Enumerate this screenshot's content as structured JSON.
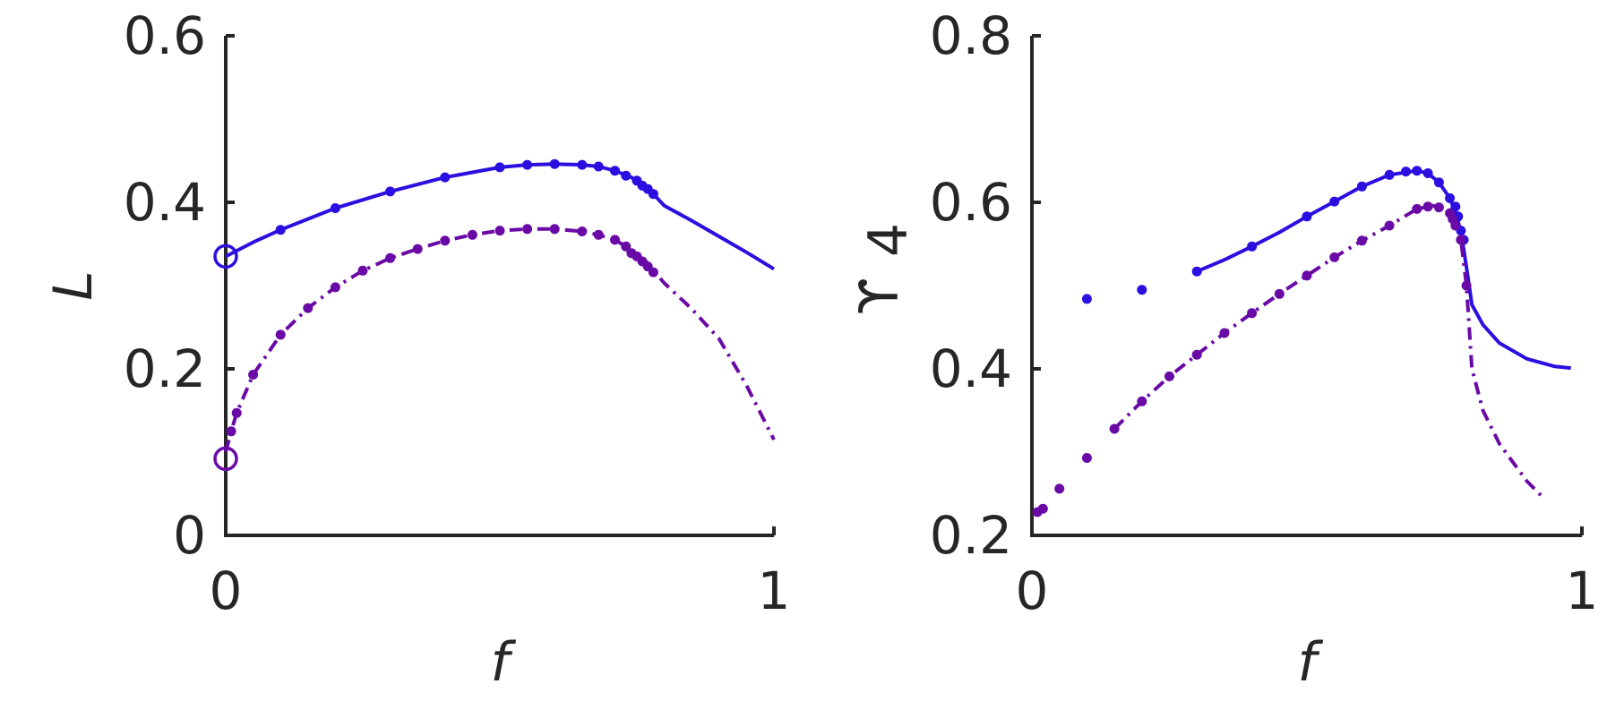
{
  "colors": {
    "blue": "#2a0fe0",
    "purple": "#6a0aa6",
    "axis": "#262626"
  },
  "chart_data": [
    {
      "type": "line",
      "xlabel": "f",
      "ylabel": "L",
      "xlim": [
        0,
        1
      ],
      "ylim": [
        0,
        0.6
      ],
      "x_ticks": [
        "0",
        "1"
      ],
      "y_ticks": [
        "0",
        "0.2",
        "0.4",
        "0.6"
      ],
      "series": [
        {
          "style": "solid",
          "color": "#2a0fe0",
          "line": [
            [
              0,
              0.335
            ],
            [
              0.05,
              0.352
            ],
            [
              0.1,
              0.367
            ],
            [
              0.2,
              0.393
            ],
            [
              0.3,
              0.413
            ],
            [
              0.4,
              0.43
            ],
            [
              0.5,
              0.442
            ],
            [
              0.55,
              0.445
            ],
            [
              0.6,
              0.446
            ],
            [
              0.65,
              0.445
            ],
            [
              0.68,
              0.443
            ],
            [
              0.71,
              0.438
            ],
            [
              0.74,
              0.43
            ],
            [
              0.76,
              0.42
            ],
            [
              0.78,
              0.41
            ],
            [
              0.8,
              0.396
            ],
            [
              0.85,
              0.378
            ],
            [
              0.9,
              0.359
            ],
            [
              0.95,
              0.34
            ],
            [
              1.0,
              0.32
            ]
          ],
          "points": [
            [
              0.1,
              0.367
            ],
            [
              0.2,
              0.393
            ],
            [
              0.3,
              0.413
            ],
            [
              0.4,
              0.43
            ],
            [
              0.5,
              0.442
            ],
            [
              0.55,
              0.445
            ],
            [
              0.6,
              0.446
            ],
            [
              0.65,
              0.445
            ],
            [
              0.68,
              0.443
            ],
            [
              0.71,
              0.438
            ],
            [
              0.73,
              0.432
            ],
            [
              0.75,
              0.426
            ],
            [
              0.76,
              0.42
            ],
            [
              0.77,
              0.416
            ],
            [
              0.78,
              0.41
            ]
          ],
          "open_marker": [
            0,
            0.335
          ]
        },
        {
          "style": "dashdot",
          "color": "#6a0aa6",
          "line": [
            [
              0,
              0.1
            ],
            [
              0.01,
              0.125
            ],
            [
              0.02,
              0.147
            ],
            [
              0.05,
              0.193
            ],
            [
              0.1,
              0.241
            ],
            [
              0.15,
              0.273
            ],
            [
              0.2,
              0.298
            ],
            [
              0.25,
              0.318
            ],
            [
              0.3,
              0.333
            ],
            [
              0.35,
              0.344
            ],
            [
              0.4,
              0.354
            ],
            [
              0.45,
              0.361
            ],
            [
              0.5,
              0.366
            ],
            [
              0.55,
              0.368
            ],
            [
              0.6,
              0.368
            ],
            [
              0.65,
              0.365
            ],
            [
              0.68,
              0.361
            ],
            [
              0.71,
              0.355
            ],
            [
              0.73,
              0.347
            ],
            [
              0.75,
              0.337
            ],
            [
              0.77,
              0.327
            ],
            [
              0.78,
              0.318
            ],
            [
              0.8,
              0.303
            ],
            [
              0.85,
              0.272
            ],
            [
              0.9,
              0.236
            ],
            [
              0.95,
              0.18
            ],
            [
              1.0,
              0.115
            ]
          ],
          "points": [
            [
              0.01,
              0.125
            ],
            [
              0.02,
              0.147
            ],
            [
              0.05,
              0.193
            ],
            [
              0.1,
              0.241
            ],
            [
              0.15,
              0.273
            ],
            [
              0.2,
              0.298
            ],
            [
              0.25,
              0.318
            ],
            [
              0.3,
              0.333
            ],
            [
              0.35,
              0.344
            ],
            [
              0.4,
              0.354
            ],
            [
              0.45,
              0.361
            ],
            [
              0.5,
              0.366
            ],
            [
              0.55,
              0.368
            ],
            [
              0.6,
              0.368
            ],
            [
              0.65,
              0.365
            ],
            [
              0.68,
              0.361
            ],
            [
              0.71,
              0.355
            ],
            [
              0.73,
              0.347
            ],
            [
              0.74,
              0.339
            ],
            [
              0.75,
              0.335
            ],
            [
              0.76,
              0.329
            ],
            [
              0.77,
              0.323
            ],
            [
              0.78,
              0.316
            ]
          ],
          "open_marker": [
            0,
            0.092
          ]
        }
      ]
    },
    {
      "type": "line",
      "xlabel": "f",
      "ylabel": "ϒ",
      "ylabel_sub": "4",
      "xlim": [
        0,
        1
      ],
      "ylim": [
        0.2,
        0.8
      ],
      "x_ticks": [
        "0",
        "1"
      ],
      "y_ticks": [
        "0.2",
        "0.4",
        "0.6",
        "0.8"
      ],
      "series": [
        {
          "style": "solid",
          "color": "#2a0fe0",
          "line": [
            [
              0.3,
              0.517
            ],
            [
              0.35,
              0.531
            ],
            [
              0.4,
              0.547
            ],
            [
              0.45,
              0.564
            ],
            [
              0.5,
              0.583
            ],
            [
              0.55,
              0.601
            ],
            [
              0.6,
              0.619
            ],
            [
              0.65,
              0.633
            ],
            [
              0.7,
              0.638
            ],
            [
              0.72,
              0.635
            ],
            [
              0.74,
              0.624
            ],
            [
              0.76,
              0.605
            ],
            [
              0.77,
              0.588
            ],
            [
              0.78,
              0.565
            ],
            [
              0.79,
              0.522
            ],
            [
              0.8,
              0.477
            ],
            [
              0.82,
              0.453
            ],
            [
              0.85,
              0.431
            ],
            [
              0.9,
              0.412
            ],
            [
              0.95,
              0.403
            ],
            [
              0.98,
              0.401
            ]
          ],
          "points": [
            [
              0.1,
              0.484
            ],
            [
              0.2,
              0.495
            ],
            [
              0.3,
              0.517
            ],
            [
              0.4,
              0.547
            ],
            [
              0.5,
              0.583
            ],
            [
              0.55,
              0.601
            ],
            [
              0.6,
              0.619
            ],
            [
              0.65,
              0.633
            ],
            [
              0.68,
              0.637
            ],
            [
              0.7,
              0.638
            ],
            [
              0.72,
              0.635
            ],
            [
              0.74,
              0.624
            ],
            [
              0.76,
              0.605
            ],
            [
              0.77,
              0.595
            ],
            [
              0.775,
              0.583
            ],
            [
              0.78,
              0.566
            ],
            [
              0.785,
              0.555
            ]
          ]
        },
        {
          "style": "dashdot",
          "color": "#6a0aa6",
          "line": [
            [
              0.15,
              0.328
            ],
            [
              0.2,
              0.361
            ],
            [
              0.25,
              0.391
            ],
            [
              0.3,
              0.417
            ],
            [
              0.35,
              0.443
            ],
            [
              0.4,
              0.467
            ],
            [
              0.45,
              0.49
            ],
            [
              0.5,
              0.512
            ],
            [
              0.55,
              0.534
            ],
            [
              0.6,
              0.554
            ],
            [
              0.65,
              0.572
            ],
            [
              0.7,
              0.592
            ],
            [
              0.73,
              0.596
            ],
            [
              0.76,
              0.588
            ],
            [
              0.77,
              0.576
            ],
            [
              0.78,
              0.555
            ],
            [
              0.79,
              0.5
            ],
            [
              0.8,
              0.4
            ],
            [
              0.82,
              0.35
            ],
            [
              0.85,
              0.31
            ],
            [
              0.9,
              0.265
            ],
            [
              0.93,
              0.245
            ]
          ],
          "points": [
            [
              0.01,
              0.228
            ],
            [
              0.02,
              0.232
            ],
            [
              0.05,
              0.256
            ],
            [
              0.1,
              0.293
            ],
            [
              0.15,
              0.328
            ],
            [
              0.2,
              0.361
            ],
            [
              0.25,
              0.391
            ],
            [
              0.3,
              0.417
            ],
            [
              0.35,
              0.443
            ],
            [
              0.4,
              0.467
            ],
            [
              0.45,
              0.49
            ],
            [
              0.5,
              0.512
            ],
            [
              0.55,
              0.534
            ],
            [
              0.6,
              0.554
            ],
            [
              0.65,
              0.572
            ],
            [
              0.7,
              0.592
            ],
            [
              0.72,
              0.595
            ],
            [
              0.74,
              0.594
            ],
            [
              0.76,
              0.587
            ],
            [
              0.765,
              0.58
            ],
            [
              0.77,
              0.572
            ],
            [
              0.78,
              0.555
            ],
            [
              0.79,
              0.5
            ]
          ]
        }
      ]
    }
  ]
}
